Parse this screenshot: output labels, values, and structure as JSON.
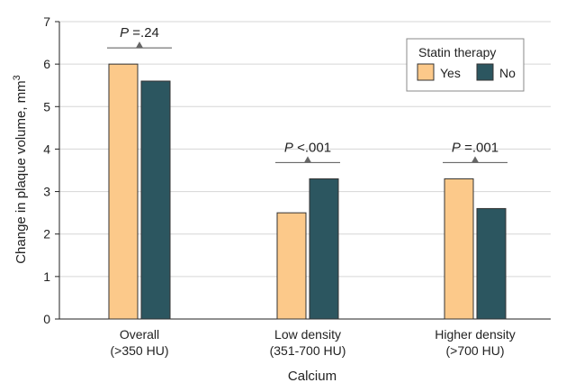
{
  "chart_data": {
    "type": "bar",
    "categories": [
      {
        "line1": "Overall",
        "line2": "(>350 HU)"
      },
      {
        "line1": "Low density",
        "line2": "(351-700 HU)"
      },
      {
        "line1": "Higher density",
        "line2": "(>700 HU)"
      }
    ],
    "series": [
      {
        "name": "Yes",
        "values": [
          6.0,
          2.5,
          3.3
        ],
        "color": "#fcc98a"
      },
      {
        "name": "No",
        "values": [
          5.6,
          3.3,
          2.6
        ],
        "color": "#2c5660"
      }
    ],
    "annotations": [
      {
        "label_italic": "P",
        "label_rest": " =.24"
      },
      {
        "label_italic": "P",
        "label_rest": " <.001"
      },
      {
        "label_italic": "P",
        "label_rest": " =.001"
      }
    ],
    "xlabel": "Calcium",
    "ylabel": "Change in plaque volume, mm",
    "ylabel_superscript": "3",
    "ylim": [
      0,
      7
    ],
    "yticks": [
      0,
      1,
      2,
      3,
      4,
      5,
      6,
      7
    ],
    "grid": true,
    "legend": {
      "title": "Statin therapy",
      "position": "top-right"
    }
  }
}
